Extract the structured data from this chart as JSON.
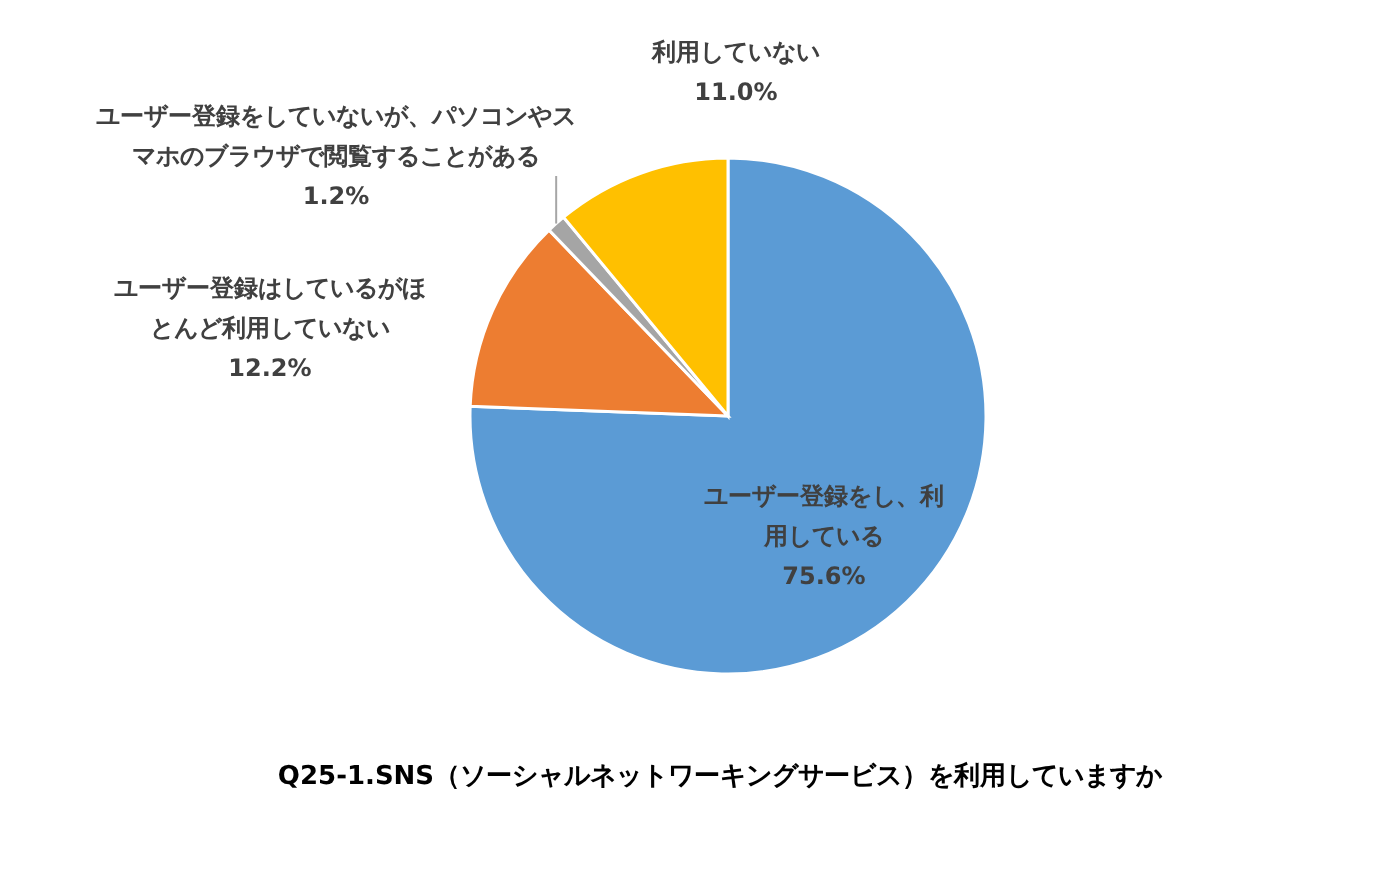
{
  "chart_data": {
    "type": "pie",
    "title": "Q25-1.SNS（ソーシャルネットワーキングサービス）を利用していますか",
    "categories": [
      "ユーザー登録をし、利用している",
      "ユーザー登録はしているがほとんど利用していない",
      "ユーザー登録をしていないが、パソコンやスマホのブラウザで閲覧することがある",
      "利用していない"
    ],
    "values": [
      75.6,
      12.2,
      1.2,
      11.0
    ],
    "colors": [
      "#5b9bd5",
      "#ed7d31",
      "#a5a5a5",
      "#ffc000"
    ],
    "value_labels": [
      "75.6%",
      "12.2%",
      "1.2%",
      "11.0%"
    ]
  }
}
